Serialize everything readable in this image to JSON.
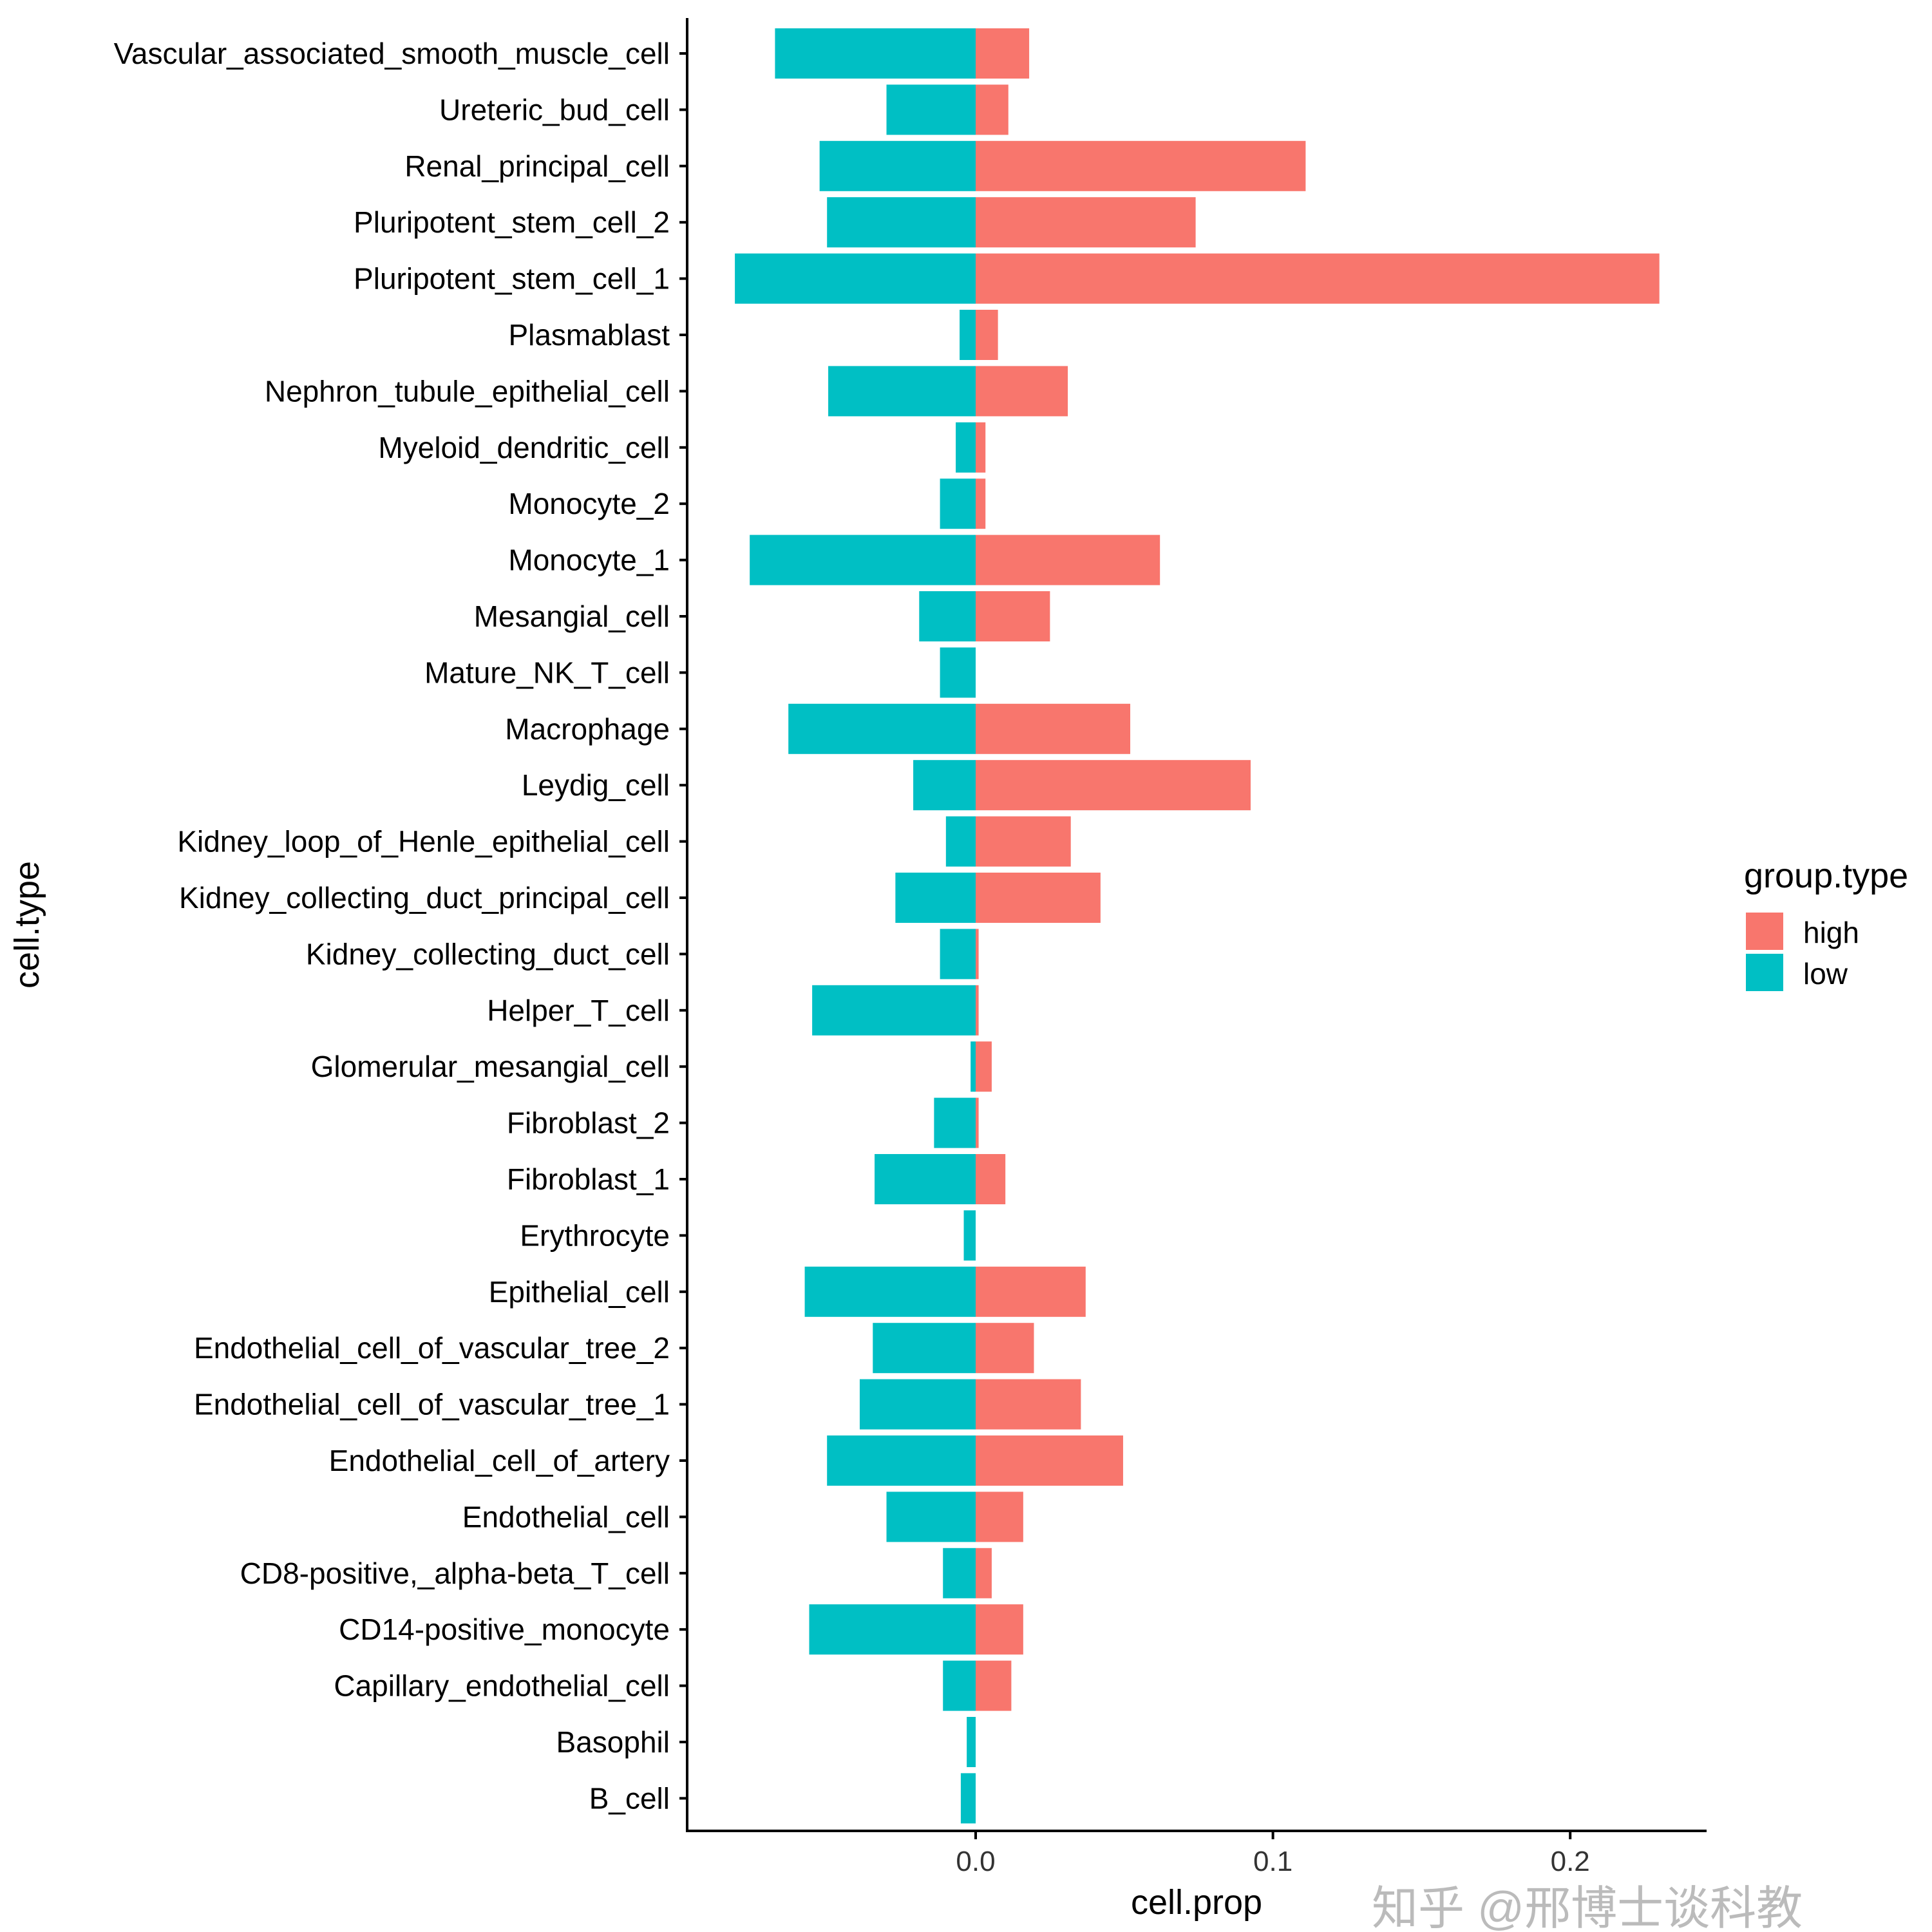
{
  "chart_data": {
    "type": "bar",
    "orientation": "horizontal",
    "xlabel": "cell.prop",
    "ylabel": "cell.type",
    "xticks": [
      0.0,
      0.1,
      0.2
    ],
    "xtick_labels": [
      "0.0",
      "0.1",
      "0.2"
    ],
    "xlim": [
      -0.097,
      0.247
    ],
    "legend": {
      "title": "group.type",
      "placement": "right",
      "entries": [
        "high",
        "low"
      ]
    },
    "colors": {
      "high": "#F8766D",
      "low": "#00BFC4"
    },
    "categories": [
      "Vascular_associated_smooth_muscle_cell",
      "Ureteric_bud_cell",
      "Renal_principal_cell",
      "Pluripotent_stem_cell_2",
      "Pluripotent_stem_cell_1",
      "Plasmablast",
      "Nephron_tubule_epithelial_cell",
      "Myeloid_dendritic_cell",
      "Monocyte_2",
      "Monocyte_1",
      "Mesangial_cell",
      "Mature_NK_T_cell",
      "Macrophage",
      "Leydig_cell",
      "Kidney_loop_of_Henle_epithelial_cell",
      "Kidney_collecting_duct_principal_cell",
      "Kidney_collecting_duct_cell",
      "Helper_T_cell",
      "Glomerular_mesangial_cell",
      "Fibroblast_2",
      "Fibroblast_1",
      "Erythrocyte",
      "Epithelial_cell",
      "Endothelial_cell_of_vascular_tree_2",
      "Endothelial_cell_of_vascular_tree_1",
      "Endothelial_cell_of_artery",
      "Endothelial_cell",
      "CD8-positive,_alpha-beta_T_cell",
      "CD14-positive_monocyte",
      "Capillary_endothelial_cell",
      "Basophil",
      "B_cell"
    ],
    "series": [
      {
        "name": "high",
        "values": [
          0.018,
          0.011,
          0.111,
          0.074,
          0.23,
          0.0075,
          0.031,
          0.0033,
          0.0033,
          0.062,
          0.025,
          0,
          0.052,
          0.0925,
          0.032,
          0.042,
          0.001,
          0.001,
          0.0054,
          0.001,
          0.01,
          0,
          0.037,
          0.0196,
          0.0354,
          0.0496,
          0.016,
          0.0054,
          0.016,
          0.012,
          0,
          0
        ]
      },
      {
        "name": "low",
        "values": [
          -0.0675,
          -0.03,
          -0.0525,
          -0.05,
          -0.081,
          -0.0054,
          -0.0496,
          -0.0067,
          -0.012,
          -0.076,
          -0.019,
          -0.012,
          -0.063,
          -0.021,
          -0.01,
          -0.027,
          -0.012,
          -0.055,
          -0.0017,
          -0.014,
          -0.034,
          -0.004,
          -0.0575,
          -0.0346,
          -0.039,
          -0.05,
          -0.03,
          -0.011,
          -0.056,
          -0.011,
          -0.003,
          -0.005
        ]
      }
    ]
  },
  "watermark": "知乎 @邢博士谈科教"
}
